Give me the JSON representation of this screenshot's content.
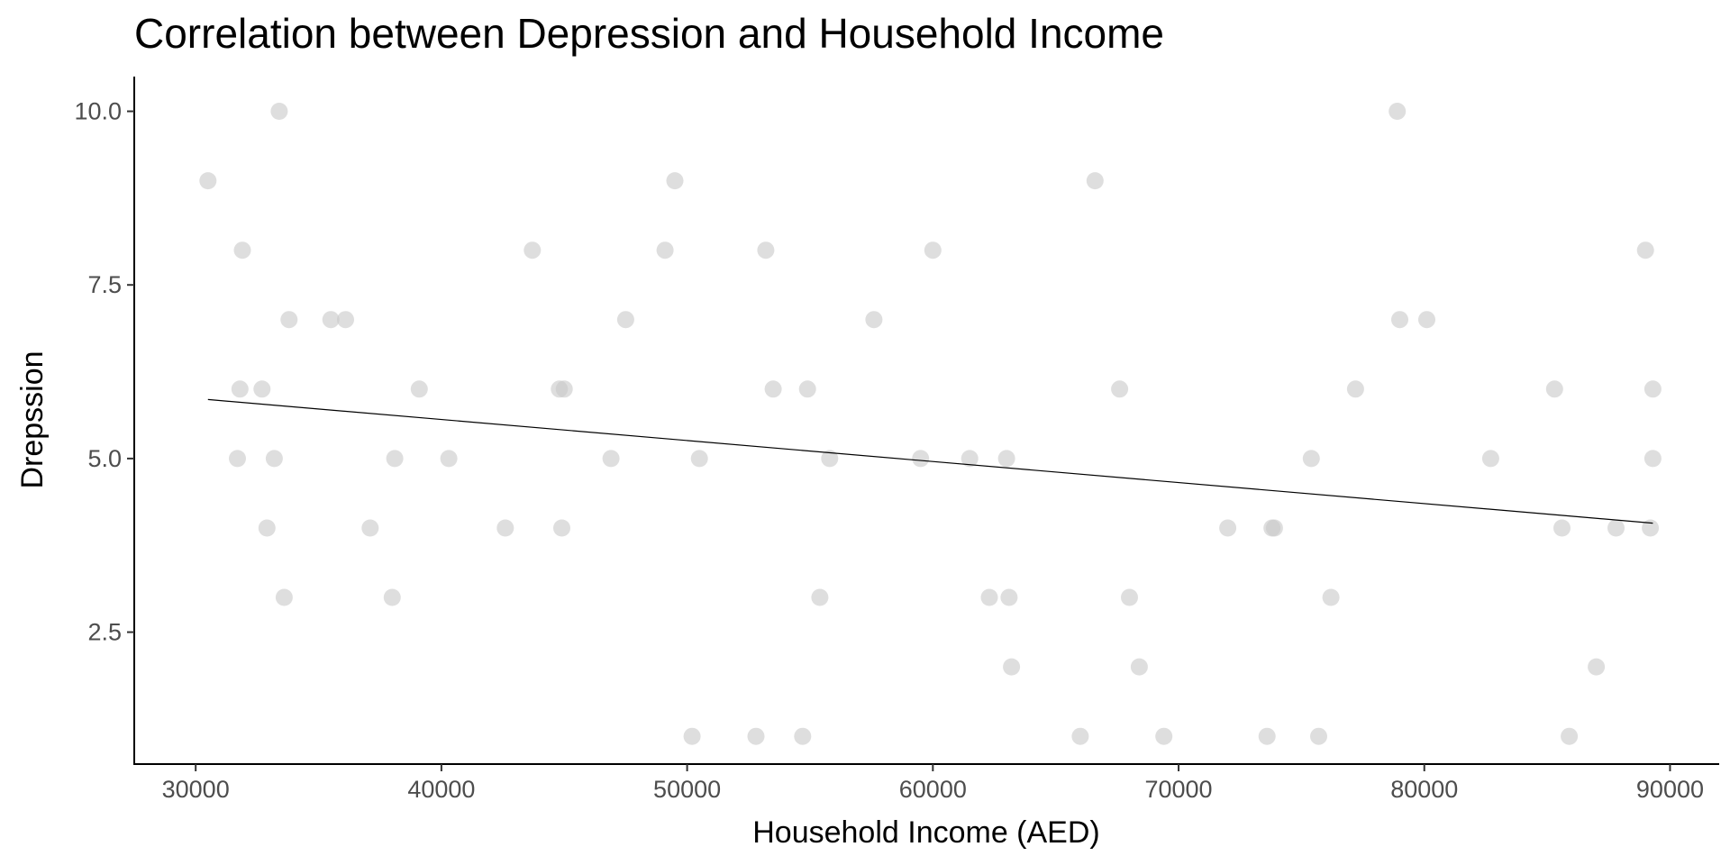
{
  "chart_data": {
    "type": "scatter",
    "title": "Correlation between Depression and Household Income",
    "xlabel": "Household Income (AED)",
    "ylabel": "Drepssion",
    "xlim": [
      27500,
      92000
    ],
    "ylim": [
      0.6,
      10.5
    ],
    "x_ticks": [
      "30000",
      "40000",
      "50000",
      "60000",
      "70000",
      "80000",
      "90000"
    ],
    "y_ticks": [
      "2.5",
      "5.0",
      "7.5",
      "10.0"
    ],
    "grid": false,
    "legend": "none",
    "point_color": "#c8c8c8",
    "trend_color": "#000000",
    "trend_line": {
      "x": [
        30500,
        89300
      ],
      "y": [
        5.85,
        4.07
      ]
    },
    "points": [
      {
        "x": 30500,
        "y": 9
      },
      {
        "x": 31800,
        "y": 6
      },
      {
        "x": 31900,
        "y": 8
      },
      {
        "x": 31700,
        "y": 5
      },
      {
        "x": 32700,
        "y": 6
      },
      {
        "x": 32900,
        "y": 4
      },
      {
        "x": 33200,
        "y": 5
      },
      {
        "x": 33400,
        "y": 10
      },
      {
        "x": 33600,
        "y": 3
      },
      {
        "x": 33800,
        "y": 7
      },
      {
        "x": 35500,
        "y": 7
      },
      {
        "x": 36100,
        "y": 7
      },
      {
        "x": 37100,
        "y": 4
      },
      {
        "x": 38000,
        "y": 3
      },
      {
        "x": 38100,
        "y": 5
      },
      {
        "x": 39100,
        "y": 6
      },
      {
        "x": 40300,
        "y": 5
      },
      {
        "x": 42600,
        "y": 4
      },
      {
        "x": 43700,
        "y": 8
      },
      {
        "x": 44800,
        "y": 6
      },
      {
        "x": 44900,
        "y": 4
      },
      {
        "x": 45000,
        "y": 6
      },
      {
        "x": 46900,
        "y": 5
      },
      {
        "x": 47500,
        "y": 7
      },
      {
        "x": 49100,
        "y": 8
      },
      {
        "x": 49500,
        "y": 9
      },
      {
        "x": 50200,
        "y": 1
      },
      {
        "x": 50500,
        "y": 5
      },
      {
        "x": 52800,
        "y": 1
      },
      {
        "x": 53200,
        "y": 8
      },
      {
        "x": 53500,
        "y": 6
      },
      {
        "x": 54700,
        "y": 1
      },
      {
        "x": 54900,
        "y": 6
      },
      {
        "x": 55400,
        "y": 3
      },
      {
        "x": 55800,
        "y": 5
      },
      {
        "x": 57600,
        "y": 7
      },
      {
        "x": 59500,
        "y": 5
      },
      {
        "x": 60000,
        "y": 8
      },
      {
        "x": 61500,
        "y": 5
      },
      {
        "x": 62300,
        "y": 3
      },
      {
        "x": 63000,
        "y": 5
      },
      {
        "x": 63100,
        "y": 3
      },
      {
        "x": 63200,
        "y": 2
      },
      {
        "x": 66000,
        "y": 1
      },
      {
        "x": 66600,
        "y": 9
      },
      {
        "x": 67600,
        "y": 6
      },
      {
        "x": 68000,
        "y": 3
      },
      {
        "x": 68400,
        "y": 2
      },
      {
        "x": 69400,
        "y": 1
      },
      {
        "x": 72000,
        "y": 4
      },
      {
        "x": 73600,
        "y": 1
      },
      {
        "x": 73800,
        "y": 4
      },
      {
        "x": 73900,
        "y": 4
      },
      {
        "x": 75400,
        "y": 5
      },
      {
        "x": 75700,
        "y": 1
      },
      {
        "x": 76200,
        "y": 3
      },
      {
        "x": 77200,
        "y": 6
      },
      {
        "x": 78900,
        "y": 10
      },
      {
        "x": 79000,
        "y": 7
      },
      {
        "x": 80100,
        "y": 7
      },
      {
        "x": 82700,
        "y": 5
      },
      {
        "x": 85300,
        "y": 6
      },
      {
        "x": 85600,
        "y": 4
      },
      {
        "x": 85900,
        "y": 1
      },
      {
        "x": 87000,
        "y": 2
      },
      {
        "x": 87800,
        "y": 4
      },
      {
        "x": 89000,
        "y": 8
      },
      {
        "x": 89200,
        "y": 4
      },
      {
        "x": 89300,
        "y": 6
      },
      {
        "x": 89300,
        "y": 5
      }
    ]
  }
}
